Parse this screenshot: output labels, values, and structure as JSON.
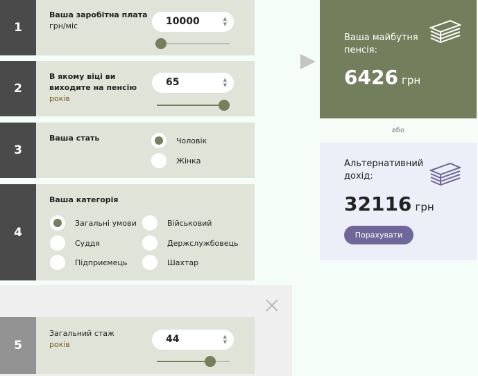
{
  "steps": [
    {
      "num": "1",
      "label": "Ваша заробітна плата",
      "unit": "грн/міс",
      "value": "10000",
      "slider_percent": 0
    },
    {
      "num": "2",
      "label": "В якому віці ви виходите на пенсію",
      "unit": "років",
      "value": "65",
      "slider_percent": 100
    },
    {
      "num": "3",
      "label": "Ваша стать",
      "options": [
        "Чоловік",
        "Жінка"
      ],
      "selected": "Чоловік"
    },
    {
      "num": "4",
      "label": "Ваша категорія",
      "options": [
        "Загальні умови",
        "Військовий",
        "Суддя",
        "Держслужбовець",
        "Підприємець",
        "Шахтар"
      ],
      "selected": "Загальні умови"
    },
    {
      "num": "5",
      "label": "Загальний стаж",
      "unit": "років",
      "value": "44",
      "slider_percent": 73
    }
  ],
  "result": {
    "title": "Ваша майбутня пенсія:",
    "amount": "6426",
    "currency": "грн",
    "bg": "#737f5c"
  },
  "or": "або",
  "alt": {
    "title": "Альтернативний дохід:",
    "amount": "32116",
    "currency": "грн",
    "button": "Порахувати",
    "accent": "#6f6699",
    "bg": "#eceef8"
  },
  "icons": {
    "money": "money-stack-icon",
    "close": "close-icon",
    "arrow": "play-arrow-icon"
  }
}
